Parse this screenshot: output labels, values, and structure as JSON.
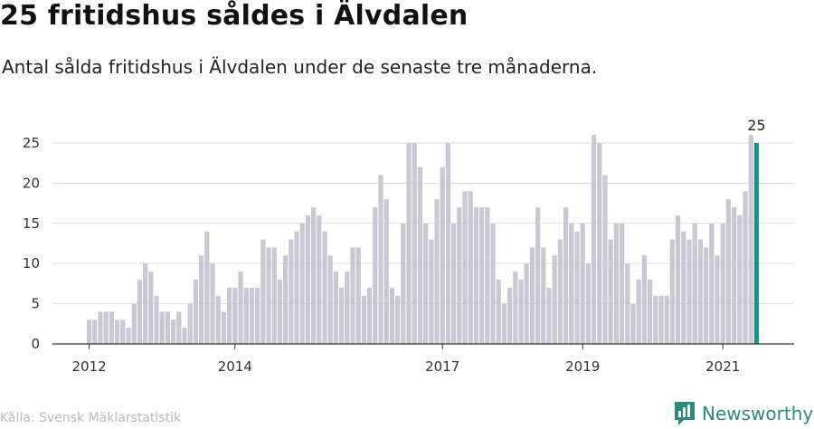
{
  "header": {
    "title": "25 fritidshus såldes i Älvdalen",
    "subtitle": "Antal sålda fritidshus i Älvdalen under de senaste tre månaderna."
  },
  "footer": {
    "source": "Källa: Svensk Mäklarstatistik",
    "brand": "Newsworthy"
  },
  "colors": {
    "bar": "#c8c7d3",
    "highlight": "#1a9185",
    "grid": "#dddddd",
    "axis": "#333333",
    "brand": "#2a8a82"
  },
  "chart_data": {
    "type": "bar",
    "title": "",
    "xlabel": "",
    "ylabel": "",
    "ylim": [
      0,
      25
    ],
    "yticks": [
      0,
      5,
      10,
      15,
      20,
      25
    ],
    "grid": true,
    "x_tick_labels": [
      "2012",
      "2014",
      "2017",
      "2019",
      "2021"
    ],
    "x_tick_bar_index": [
      0,
      26,
      63,
      88,
      113
    ],
    "end_label": "25",
    "series": [
      {
        "values": [
          3,
          3,
          4,
          4,
          4,
          3,
          3,
          2,
          5,
          8,
          10,
          9,
          6,
          4,
          4,
          3,
          4,
          2,
          5,
          8,
          11,
          14,
          10,
          6,
          4,
          7,
          7,
          9,
          7,
          7,
          7,
          13,
          12,
          12,
          8,
          11,
          13,
          14,
          15,
          16,
          17,
          16,
          14,
          11,
          9,
          7,
          9,
          12,
          12,
          6,
          7,
          17,
          21,
          18,
          7,
          6,
          15,
          25,
          25,
          22,
          15,
          13,
          18,
          22,
          25,
          15,
          17,
          19,
          19,
          17,
          17,
          17,
          15,
          8,
          5,
          7,
          9,
          8,
          10,
          12,
          17,
          12,
          7,
          11,
          13,
          17,
          15,
          14,
          15,
          10,
          26,
          25,
          21,
          13,
          15,
          15,
          10,
          5,
          8,
          11,
          8,
          6,
          6,
          6,
          13,
          16,
          14,
          13,
          15,
          13,
          12,
          15,
          11,
          15,
          18,
          17,
          16,
          19,
          26,
          25
        ]
      }
    ]
  }
}
